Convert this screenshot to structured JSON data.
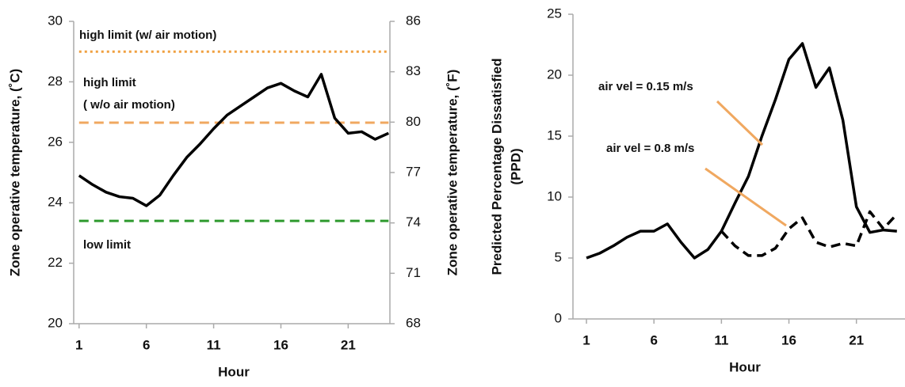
{
  "chart_data": [
    {
      "type": "line",
      "xlabel": "Hour",
      "ylabel": "Zone operative temperature, (˚C)",
      "y2label": "Zone operative temperature, (˚F)",
      "x": [
        1,
        2,
        3,
        4,
        5,
        6,
        7,
        8,
        9,
        10,
        11,
        12,
        13,
        14,
        15,
        16,
        17,
        18,
        19,
        20,
        21,
        22,
        23,
        24
      ],
      "xlim": [
        0.6,
        24.1
      ],
      "xticks": [
        1,
        6,
        11,
        16,
        21
      ],
      "ylim": [
        20,
        30
      ],
      "yticks": [
        20,
        22,
        24,
        26,
        28,
        30
      ],
      "y2lim": [
        68,
        86
      ],
      "y2ticks": [
        68,
        71,
        74,
        77,
        80,
        83,
        86
      ],
      "series": [
        {
          "color": "#000000",
          "style": "solid",
          "values": [
            24.9,
            24.6,
            24.35,
            24.2,
            24.15,
            23.9,
            24.25,
            24.9,
            25.5,
            25.95,
            26.45,
            26.9,
            27.2,
            27.5,
            27.8,
            27.95,
            27.7,
            27.5,
            28.25,
            26.8,
            26.3,
            26.35,
            26.1,
            26.3
          ]
        }
      ],
      "hlines": [
        {
          "value": 29,
          "color": "#f0a040",
          "style": "dotted",
          "label": [
            "high limit (w/ air motion)"
          ]
        },
        {
          "value": 26.65,
          "color": "#f0a860",
          "style": "dashed",
          "label": [
            "high limit",
            "( w/o air motion)"
          ]
        },
        {
          "value": 23.4,
          "color": "#2e9a2e",
          "style": "dashed",
          "label": [
            "low limit"
          ]
        }
      ]
    },
    {
      "type": "line",
      "xlabel": "Hour",
      "ylabel": [
        "Predicted Percentage Dissatisfied",
        "(PPD)"
      ],
      "x": [
        1,
        2,
        3,
        4,
        5,
        6,
        7,
        8,
        9,
        10,
        11,
        12,
        13,
        14,
        15,
        16,
        17,
        18,
        19,
        20,
        21,
        22,
        23,
        24
      ],
      "xlim": [
        0,
        24.6
      ],
      "xticks": [
        1,
        6,
        11,
        16,
        21
      ],
      "ylim": [
        0,
        25
      ],
      "yticks": [
        0,
        5,
        10,
        15,
        20,
        25
      ],
      "series": [
        {
          "name": "air vel = 0.15 m/s",
          "color": "#000000",
          "style": "solid",
          "values": [
            5.0,
            5.4,
            6.0,
            6.7,
            7.2,
            7.2,
            7.8,
            6.3,
            5.0,
            5.7,
            7.2,
            9.5,
            11.7,
            15.0,
            18.0,
            21.3,
            22.6,
            19.0,
            20.6,
            16.3,
            9.2,
            7.1,
            7.3,
            7.2
          ]
        },
        {
          "name": "air vel = 0.8 m/s",
          "color": "#000000",
          "style": "dashed",
          "values": [
            null,
            null,
            null,
            null,
            null,
            null,
            null,
            null,
            null,
            null,
            7.2,
            6.0,
            5.2,
            5.2,
            5.8,
            7.4,
            8.3,
            6.3,
            5.9,
            6.2,
            6.0,
            8.8,
            7.4,
            8.6
          ]
        }
      ]
    }
  ]
}
